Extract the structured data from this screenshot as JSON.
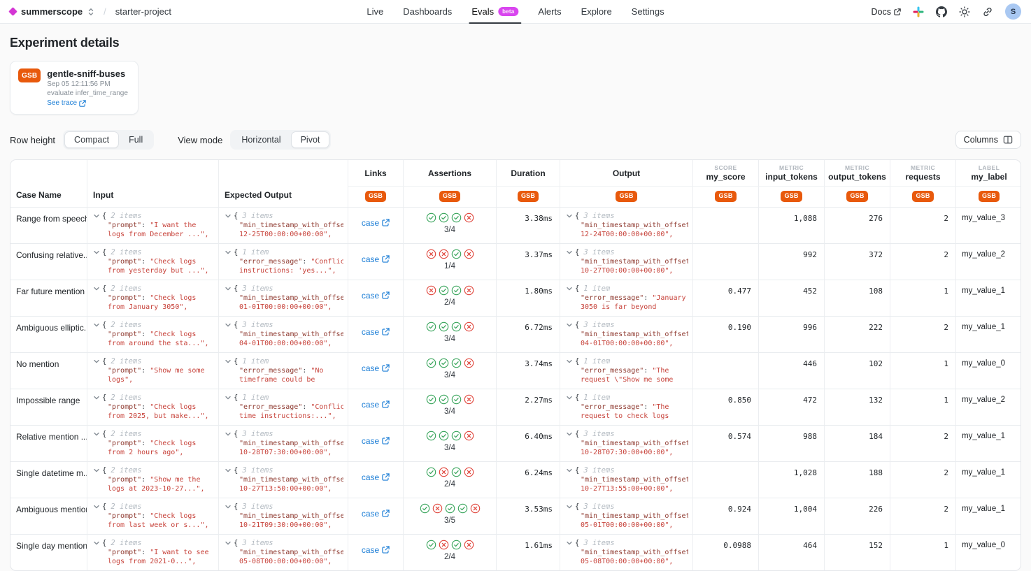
{
  "navbar": {
    "brand": "summerscope",
    "project": "starter-project",
    "items": [
      {
        "label": "Live",
        "active": false,
        "badge": null
      },
      {
        "label": "Dashboards",
        "active": false,
        "badge": null
      },
      {
        "label": "Evals",
        "active": true,
        "badge": "beta"
      },
      {
        "label": "Alerts",
        "active": false,
        "badge": null
      },
      {
        "label": "Explore",
        "active": false,
        "badge": null
      },
      {
        "label": "Settings",
        "active": false,
        "badge": null
      }
    ],
    "docs_label": "Docs",
    "avatar_letter": "S"
  },
  "page": {
    "title": "Experiment details"
  },
  "experiment_card": {
    "badge": "GSB",
    "name": "gentle-sniff-buses",
    "timestamp": "Sep 05 12:11:56 PM",
    "task": "evaluate infer_time_range",
    "trace_link": "See trace"
  },
  "toolbar": {
    "row_height_label": "Row height",
    "row_height_options": [
      "Compact",
      "Full"
    ],
    "row_height_selected": "Compact",
    "view_mode_label": "View mode",
    "view_mode_options": [
      "Horizontal",
      "Pivot"
    ],
    "view_mode_selected": "Pivot",
    "columns_button": "Columns"
  },
  "colors": {
    "brand_magenta": "#d435d4",
    "badge_orange": "#e8590c",
    "link_blue": "#1c7ed6",
    "pass_green": "#37a45a",
    "fail_red": "#e0443a",
    "json_key": "#8f3a30",
    "json_value": "#c7423a"
  },
  "table": {
    "experiment_badge": "GSB",
    "columns": [
      {
        "id": "case-name",
        "label": "Case Name"
      },
      {
        "id": "input",
        "label": "Input"
      },
      {
        "id": "expected-output",
        "label": "Expected Output"
      },
      {
        "id": "links",
        "label": "Links"
      },
      {
        "id": "assertions",
        "label": "Assertions"
      },
      {
        "id": "duration",
        "label": "Duration"
      },
      {
        "id": "output",
        "label": "Output"
      },
      {
        "id": "my-score",
        "sup": "SCORE",
        "label": "my_score"
      },
      {
        "id": "input-tokens",
        "sup": "METRIC",
        "label": "input_tokens"
      },
      {
        "id": "output-tokens",
        "sup": "METRIC",
        "label": "output_tokens"
      },
      {
        "id": "requests",
        "sup": "METRIC",
        "label": "requests"
      },
      {
        "id": "my-label",
        "sup": "LABEL",
        "label": "my_label"
      }
    ],
    "rows": [
      {
        "case": "Range from speech",
        "input": {
          "items": "2 items",
          "k": "\"prompt\"",
          "v1": "\"I want the",
          "v2": "logs from December ...\","
        },
        "expected": {
          "items": "3 items",
          "k": "\"min_timestamp_with_offset\"",
          "v1": "",
          "v2": "12-25T00:00:00+00:00\","
        },
        "link": "case",
        "asserts": [
          "pass",
          "pass",
          "pass",
          "fail"
        ],
        "fraction": "3/4",
        "duration": "3.38ms",
        "output": {
          "items": "3 items",
          "k": "\"min_timestamp_with_offset\"",
          "v1": "",
          "v2": "12-24T00:00:00+00:00\","
        },
        "score": "",
        "input_tokens": "1,088",
        "output_tokens": "276",
        "requests": "2",
        "label": "my_value_3"
      },
      {
        "case": "Confusing relative...",
        "input": {
          "items": "2 items",
          "k": "\"prompt\"",
          "v1": "\"Check logs",
          "v2": "from yesterday but ...\","
        },
        "expected": {
          "items": "1 item",
          "k": "\"error_message\"",
          "v1": "\"Conflicti",
          "v2": "instructions: 'yes...\","
        },
        "link": "case",
        "asserts": [
          "fail",
          "fail",
          "pass",
          "fail"
        ],
        "fraction": "1/4",
        "duration": "3.37ms",
        "output": {
          "items": "3 items",
          "k": "\"min_timestamp_with_offset\"",
          "v1": "",
          "v2": "10-27T00:00:00+00:00\","
        },
        "score": "",
        "input_tokens": "992",
        "output_tokens": "372",
        "requests": "2",
        "label": "my_value_2"
      },
      {
        "case": "Far future mention",
        "input": {
          "items": "2 items",
          "k": "\"prompt\"",
          "v1": "\"Check logs",
          "v2": "from January 3050\","
        },
        "expected": {
          "items": "3 items",
          "k": "\"min_timestamp_with_offset\"",
          "v1": "",
          "v2": "01-01T00:00:00+00:00\","
        },
        "link": "case",
        "asserts": [
          "fail",
          "pass",
          "pass",
          "fail"
        ],
        "fraction": "2/4",
        "duration": "1.80ms",
        "output": {
          "items": "1 item",
          "k": "\"error_message\"",
          "v1": "\"January",
          "v2": "3050 is far beyond"
        },
        "score": "0.477",
        "input_tokens": "452",
        "output_tokens": "108",
        "requests": "1",
        "label": "my_value_1"
      },
      {
        "case": "Ambiguous elliptic...",
        "input": {
          "items": "2 items",
          "k": "\"prompt\"",
          "v1": "\"Check logs",
          "v2": "from around the sta...\","
        },
        "expected": {
          "items": "3 items",
          "k": "\"min_timestamp_with_offset\"",
          "v1": "",
          "v2": "04-01T00:00:00+00:00\","
        },
        "link": "case",
        "asserts": [
          "pass",
          "pass",
          "pass",
          "fail"
        ],
        "fraction": "3/4",
        "duration": "6.72ms",
        "output": {
          "items": "3 items",
          "k": "\"min_timestamp_with_offset\"",
          "v1": "",
          "v2": "04-01T00:00:00+00:00\","
        },
        "score": "0.190",
        "input_tokens": "996",
        "output_tokens": "222",
        "requests": "2",
        "label": "my_value_1"
      },
      {
        "case": "No mention",
        "input": {
          "items": "2 items",
          "k": "\"prompt\"",
          "v1": "\"Show me some",
          "v2": "logs\","
        },
        "expected": {
          "items": "1 item",
          "k": "\"error_message\"",
          "v1": "\"No",
          "v2": "timeframe could be"
        },
        "link": "case",
        "asserts": [
          "pass",
          "pass",
          "pass",
          "fail"
        ],
        "fraction": "3/4",
        "duration": "3.74ms",
        "output": {
          "items": "1 item",
          "k": "\"error_message\"",
          "v1": "\"The",
          "v2": "request \\\"Show me some"
        },
        "score": "",
        "input_tokens": "446",
        "output_tokens": "102",
        "requests": "1",
        "label": "my_value_0"
      },
      {
        "case": "Impossible range",
        "input": {
          "items": "2 items",
          "k": "\"prompt\"",
          "v1": "\"Check logs",
          "v2": "from 2025, but make...\","
        },
        "expected": {
          "items": "1 item",
          "k": "\"error_message\"",
          "v1": "\"Conflict:",
          "v2": "time instructions:...\","
        },
        "link": "case",
        "asserts": [
          "pass",
          "pass",
          "pass",
          "fail"
        ],
        "fraction": "3/4",
        "duration": "2.27ms",
        "output": {
          "items": "1 item",
          "k": "\"error_message\"",
          "v1": "\"The",
          "v2": "request to check logs"
        },
        "score": "0.850",
        "input_tokens": "472",
        "output_tokens": "132",
        "requests": "1",
        "label": "my_value_2"
      },
      {
        "case": "Relative mention ...",
        "input": {
          "items": "2 items",
          "k": "\"prompt\"",
          "v1": "\"Check logs",
          "v2": "from 2 hours ago\","
        },
        "expected": {
          "items": "3 items",
          "k": "\"min_timestamp_with_offset\"",
          "v1": "",
          "v2": "10-28T07:30:00+00:00\","
        },
        "link": "case",
        "asserts": [
          "pass",
          "pass",
          "pass",
          "fail"
        ],
        "fraction": "3/4",
        "duration": "6.40ms",
        "output": {
          "items": "3 items",
          "k": "\"min_timestamp_with_offset\"",
          "v1": "",
          "v2": "10-28T07:30:00+00:00\","
        },
        "score": "0.574",
        "input_tokens": "988",
        "output_tokens": "184",
        "requests": "2",
        "label": "my_value_1"
      },
      {
        "case": "Single datetime m...",
        "input": {
          "items": "2 items",
          "k": "\"prompt\"",
          "v1": "\"Show me the",
          "v2": "logs at 2023-10-27...\","
        },
        "expected": {
          "items": "3 items",
          "k": "\"min_timestamp_with_offset\"",
          "v1": "",
          "v2": "10-27T13:50:00+00:00\","
        },
        "link": "case",
        "asserts": [
          "pass",
          "fail",
          "pass",
          "fail"
        ],
        "fraction": "2/4",
        "duration": "6.24ms",
        "output": {
          "items": "3 items",
          "k": "\"min_timestamp_with_offset\"",
          "v1": "",
          "v2": "10-27T13:55:00+00:00\","
        },
        "score": "",
        "input_tokens": "1,028",
        "output_tokens": "188",
        "requests": "2",
        "label": "my_value_1"
      },
      {
        "case": "Ambiguous mention",
        "input": {
          "items": "2 items",
          "k": "\"prompt\"",
          "v1": "\"Check logs",
          "v2": "from last week or s...\","
        },
        "expected": {
          "items": "3 items",
          "k": "\"min_timestamp_with_offset\"",
          "v1": "",
          "v2": "10-21T09:30:00+00:00\","
        },
        "link": "case",
        "asserts": [
          "pass",
          "fail",
          "pass",
          "pass",
          "fail"
        ],
        "fraction": "3/5",
        "duration": "3.53ms",
        "output": {
          "items": "3 items",
          "k": "\"min_timestamp_with_offset\"",
          "v1": "",
          "v2": "05-01T00:00:00+00:00\","
        },
        "score": "0.924",
        "input_tokens": "1,004",
        "output_tokens": "226",
        "requests": "2",
        "label": "my_value_1"
      },
      {
        "case": "Single day mention",
        "input": {
          "items": "2 items",
          "k": "\"prompt\"",
          "v1": "\"I want to see",
          "v2": "logs from 2021-0...\","
        },
        "expected": {
          "items": "3 items",
          "k": "\"min_timestamp_with_offset\"",
          "v1": "",
          "v2": "05-08T00:00:00+00:00\","
        },
        "link": "case",
        "asserts": [
          "pass",
          "fail",
          "pass",
          "fail"
        ],
        "fraction": "2/4",
        "duration": "1.61ms",
        "output": {
          "items": "3 items",
          "k": "\"min_timestamp_with_offset\"",
          "v1": "",
          "v2": "05-08T00:00:00+00:00\","
        },
        "score": "0.0988",
        "input_tokens": "464",
        "output_tokens": "152",
        "requests": "1",
        "label": "my_value_0"
      }
    ]
  }
}
